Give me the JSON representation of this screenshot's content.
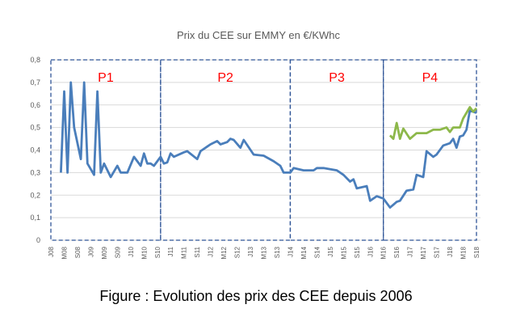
{
  "chart_data": {
    "type": "line",
    "title": "Prix du CEE sur EMMY en €/KWhc",
    "xlabel": "",
    "ylabel": "",
    "ylim": [
      0,
      0.8
    ],
    "yticks": [
      "0",
      "0,1",
      "0,2",
      "0,3",
      "0,4",
      "0,5",
      "0,6",
      "0,7",
      "0,8"
    ],
    "xlim": [
      "2008-01",
      "2018-09"
    ],
    "xticks": [
      "J08",
      "M08",
      "S08",
      "J09",
      "M09",
      "S09",
      "J10",
      "M10",
      "S10",
      "J11",
      "M11",
      "S11",
      "J12",
      "M12",
      "S12",
      "J13",
      "M13",
      "S13",
      "J14",
      "M14",
      "S14",
      "J15",
      "M15",
      "S15",
      "J16",
      "M16",
      "S16",
      "J17",
      "M17",
      "S17",
      "J18",
      "M18",
      "S18"
    ],
    "grid": true,
    "periods": [
      {
        "label": "P1",
        "start": "2008-01",
        "end": "2010-10"
      },
      {
        "label": "P2",
        "start": "2010-10",
        "end": "2014-01"
      },
      {
        "label": "P3",
        "start": "2014-01",
        "end": "2016-05"
      },
      {
        "label": "P4",
        "start": "2016-05",
        "end": "2018-09"
      }
    ],
    "period_color": "#ff0000",
    "series": [
      {
        "color": "#4a7ebb",
        "points": [
          [
            "2008-04",
            0.3
          ],
          [
            "2008-05",
            0.66
          ],
          [
            "2008-06",
            0.3
          ],
          [
            "2008-07",
            0.7
          ],
          [
            "2008-08",
            0.5
          ],
          [
            "2008-10",
            0.36
          ],
          [
            "2008-11",
            0.7
          ],
          [
            "2008-12",
            0.34
          ],
          [
            "2009-02",
            0.29
          ],
          [
            "2009-03",
            0.66
          ],
          [
            "2009-04",
            0.3
          ],
          [
            "2009-05",
            0.34
          ],
          [
            "2009-07",
            0.28
          ],
          [
            "2009-09",
            0.33
          ],
          [
            "2009-10",
            0.3
          ],
          [
            "2009-12",
            0.3
          ],
          [
            "2010-02",
            0.37
          ],
          [
            "2010-04",
            0.33
          ],
          [
            "2010-05",
            0.385
          ],
          [
            "2010-06",
            0.34
          ],
          [
            "2010-07",
            0.34
          ],
          [
            "2010-08",
            0.33
          ],
          [
            "2010-10",
            0.37
          ],
          [
            "2010-11",
            0.34
          ],
          [
            "2010-12",
            0.345
          ],
          [
            "2011-01",
            0.385
          ],
          [
            "2011-02",
            0.37
          ],
          [
            "2011-05",
            0.39
          ],
          [
            "2011-06",
            0.395
          ],
          [
            "2011-09",
            0.36
          ],
          [
            "2011-10",
            0.395
          ],
          [
            "2012-01",
            0.425
          ],
          [
            "2012-03",
            0.44
          ],
          [
            "2012-04",
            0.425
          ],
          [
            "2012-06",
            0.435
          ],
          [
            "2012-07",
            0.45
          ],
          [
            "2012-08",
            0.445
          ],
          [
            "2012-10",
            0.41
          ],
          [
            "2012-11",
            0.445
          ],
          [
            "2013-02",
            0.38
          ],
          [
            "2013-05",
            0.375
          ],
          [
            "2013-08",
            0.35
          ],
          [
            "2013-10",
            0.33
          ],
          [
            "2013-11",
            0.3
          ],
          [
            "2014-01",
            0.3
          ],
          [
            "2014-02",
            0.32
          ],
          [
            "2014-05",
            0.31
          ],
          [
            "2014-08",
            0.31
          ],
          [
            "2014-09",
            0.32
          ],
          [
            "2014-11",
            0.32
          ],
          [
            "2015-03",
            0.31
          ],
          [
            "2015-05",
            0.29
          ],
          [
            "2015-07",
            0.26
          ],
          [
            "2015-08",
            0.27
          ],
          [
            "2015-09",
            0.23
          ],
          [
            "2015-12",
            0.24
          ],
          [
            "2016-01",
            0.175
          ],
          [
            "2016-03",
            0.195
          ],
          [
            "2016-05",
            0.185
          ],
          [
            "2016-07",
            0.145
          ],
          [
            "2016-09",
            0.17
          ],
          [
            "2016-10",
            0.175
          ],
          [
            "2016-12",
            0.22
          ],
          [
            "2017-02",
            0.225
          ],
          [
            "2017-03",
            0.29
          ],
          [
            "2017-05",
            0.28
          ],
          [
            "2017-06",
            0.395
          ],
          [
            "2017-08",
            0.37
          ],
          [
            "2017-09",
            0.38
          ],
          [
            "2017-11",
            0.42
          ],
          [
            "2018-01",
            0.43
          ],
          [
            "2018-02",
            0.45
          ],
          [
            "2018-03",
            0.41
          ],
          [
            "2018-04",
            0.46
          ],
          [
            "2018-05",
            0.465
          ],
          [
            "2018-06",
            0.49
          ],
          [
            "2018-07",
            0.575
          ],
          [
            "2018-09",
            0.565
          ]
        ]
      },
      {
        "color": "#8db84a",
        "points": [
          [
            "2016-07",
            0.465
          ],
          [
            "2016-08",
            0.45
          ],
          [
            "2016-09",
            0.52
          ],
          [
            "2016-10",
            0.45
          ],
          [
            "2016-11",
            0.495
          ],
          [
            "2017-01",
            0.45
          ],
          [
            "2017-03",
            0.475
          ],
          [
            "2017-06",
            0.475
          ],
          [
            "2017-08",
            0.49
          ],
          [
            "2017-10",
            0.49
          ],
          [
            "2017-12",
            0.5
          ],
          [
            "2018-01",
            0.48
          ],
          [
            "2018-02",
            0.5
          ],
          [
            "2018-04",
            0.5
          ],
          [
            "2018-05",
            0.54
          ],
          [
            "2018-07",
            0.59
          ],
          [
            "2018-08",
            0.57
          ],
          [
            "2018-09",
            0.585
          ]
        ]
      }
    ]
  },
  "caption": "Figure : Evolution des prix des CEE depuis 2006"
}
